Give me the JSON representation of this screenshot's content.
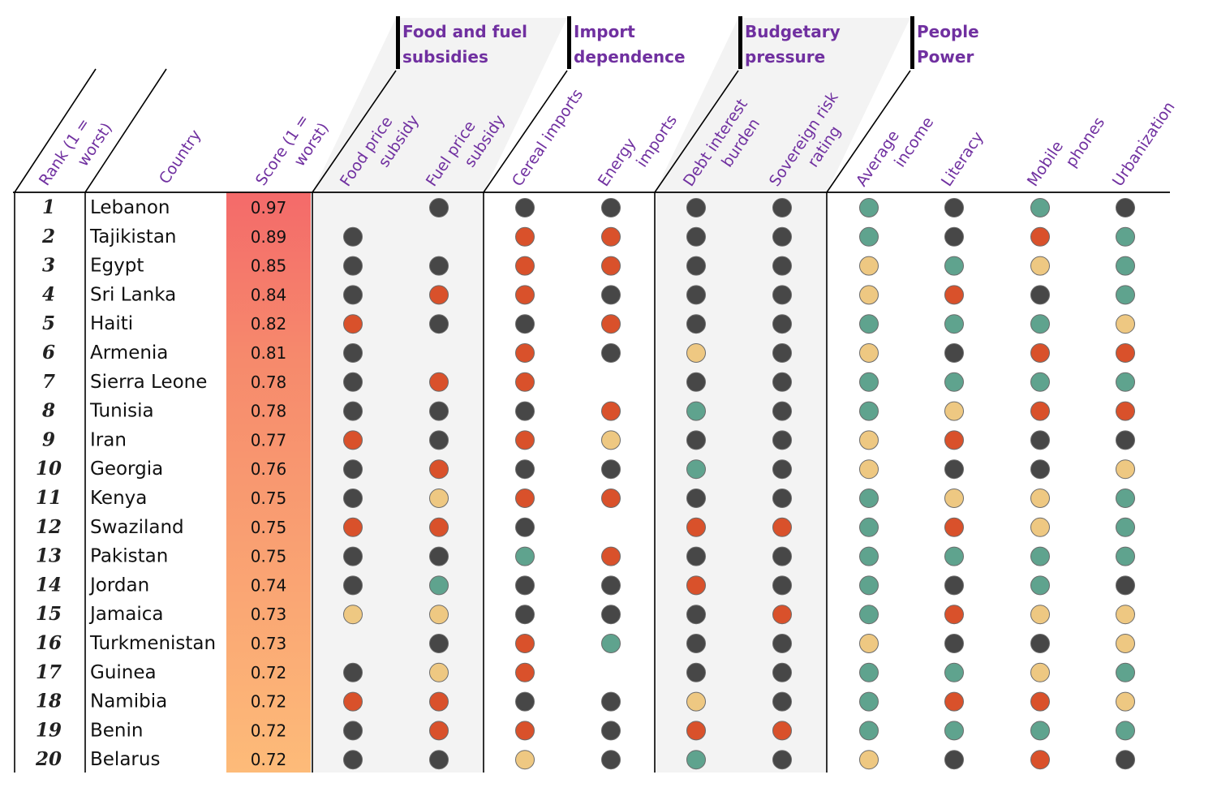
{
  "colors": {
    "none_empty": "",
    "dark": "#474747",
    "red": "#d9512b",
    "yellow": "#eec882",
    "green": "#5fa38e",
    "group_shade": "#f3f3f3",
    "header_text": "#7030a0"
  },
  "groups": [
    {
      "label_lines": [
        "Food and fuel",
        "subsidies"
      ]
    },
    {
      "label_lines": [
        "Import",
        "dependence"
      ]
    },
    {
      "label_lines": [
        "Budgetary",
        "pressure"
      ]
    },
    {
      "label_lines": [
        "People",
        "Power"
      ]
    }
  ],
  "fixed_headers": {
    "rank": [
      "Rank (1 =",
      "worst)"
    ],
    "country": [
      "Country"
    ],
    "score": [
      "Score (1 =",
      "worst)"
    ]
  },
  "indicator_headers": [
    [
      "Food price",
      "subsidy"
    ],
    [
      "Fuel price",
      "subsidy"
    ],
    [
      "Cereal imports"
    ],
    [
      "Energy",
      "imports"
    ],
    [
      "Debt interest",
      "burden"
    ],
    [
      "Sovereign risk",
      "rating"
    ],
    [
      "Average",
      "income"
    ],
    [
      "Literacy"
    ],
    [
      "Mobile",
      "phones"
    ],
    [
      "Urbanization"
    ]
  ],
  "chart_data": {
    "type": "table",
    "legend_codes": {
      "D": "dark",
      "R": "red",
      "Y": "yellow",
      "G": "green",
      "": "no value"
    },
    "rows": [
      {
        "rank": "1",
        "country": "Lebanon",
        "score": "0.97",
        "dots": [
          "",
          "D",
          "D",
          "D",
          "D",
          "D",
          "G",
          "D",
          "G",
          "D"
        ]
      },
      {
        "rank": "2",
        "country": "Tajikistan",
        "score": "0.89",
        "dots": [
          "D",
          "",
          "R",
          "R",
          "D",
          "D",
          "G",
          "D",
          "R",
          "G"
        ]
      },
      {
        "rank": "3",
        "country": "Egypt",
        "score": "0.85",
        "dots": [
          "D",
          "D",
          "R",
          "R",
          "D",
          "D",
          "Y",
          "G",
          "Y",
          "G"
        ]
      },
      {
        "rank": "4",
        "country": "Sri Lanka",
        "score": "0.84",
        "dots": [
          "D",
          "R",
          "R",
          "D",
          "D",
          "D",
          "Y",
          "R",
          "D",
          "G"
        ]
      },
      {
        "rank": "5",
        "country": "Haiti",
        "score": "0.82",
        "dots": [
          "R",
          "D",
          "D",
          "R",
          "D",
          "D",
          "G",
          "G",
          "G",
          "Y"
        ]
      },
      {
        "rank": "6",
        "country": "Armenia",
        "score": "0.81",
        "dots": [
          "D",
          "",
          "R",
          "D",
          "Y",
          "D",
          "Y",
          "D",
          "R",
          "R"
        ]
      },
      {
        "rank": "7",
        "country": "Sierra Leone",
        "score": "0.78",
        "dots": [
          "D",
          "R",
          "R",
          "",
          "D",
          "D",
          "G",
          "G",
          "G",
          "G"
        ]
      },
      {
        "rank": "8",
        "country": "Tunisia",
        "score": "0.78",
        "dots": [
          "D",
          "D",
          "D",
          "R",
          "G",
          "D",
          "G",
          "Y",
          "R",
          "R"
        ]
      },
      {
        "rank": "9",
        "country": "Iran",
        "score": "0.77",
        "dots": [
          "R",
          "D",
          "R",
          "Y",
          "D",
          "D",
          "Y",
          "R",
          "D",
          "D"
        ]
      },
      {
        "rank": "10",
        "country": "Georgia",
        "score": "0.76",
        "dots": [
          "D",
          "R",
          "D",
          "D",
          "G",
          "D",
          "Y",
          "D",
          "D",
          "Y"
        ]
      },
      {
        "rank": "11",
        "country": "Kenya",
        "score": "0.75",
        "dots": [
          "D",
          "Y",
          "R",
          "R",
          "D",
          "D",
          "G",
          "Y",
          "Y",
          "G"
        ]
      },
      {
        "rank": "12",
        "country": "Swaziland",
        "score": "0.75",
        "dots": [
          "R",
          "R",
          "D",
          "",
          "R",
          "R",
          "G",
          "R",
          "Y",
          "G"
        ]
      },
      {
        "rank": "13",
        "country": "Pakistan",
        "score": "0.75",
        "dots": [
          "D",
          "D",
          "G",
          "R",
          "D",
          "D",
          "G",
          "G",
          "G",
          "G"
        ]
      },
      {
        "rank": "14",
        "country": "Jordan",
        "score": "0.74",
        "dots": [
          "D",
          "G",
          "D",
          "D",
          "R",
          "D",
          "G",
          "D",
          "G",
          "D"
        ]
      },
      {
        "rank": "15",
        "country": "Jamaica",
        "score": "0.73",
        "dots": [
          "Y",
          "Y",
          "D",
          "D",
          "D",
          "R",
          "G",
          "R",
          "Y",
          "Y"
        ]
      },
      {
        "rank": "16",
        "country": "Turkmenistan",
        "score": "0.73",
        "dots": [
          "",
          "D",
          "R",
          "G",
          "D",
          "D",
          "Y",
          "D",
          "D",
          "Y"
        ]
      },
      {
        "rank": "17",
        "country": "Guinea",
        "score": "0.72",
        "dots": [
          "D",
          "Y",
          "R",
          "",
          "D",
          "D",
          "G",
          "G",
          "Y",
          "G"
        ]
      },
      {
        "rank": "18",
        "country": "Namibia",
        "score": "0.72",
        "dots": [
          "R",
          "R",
          "D",
          "D",
          "Y",
          "D",
          "G",
          "R",
          "R",
          "Y"
        ]
      },
      {
        "rank": "19",
        "country": "Benin",
        "score": "0.72",
        "dots": [
          "D",
          "R",
          "R",
          "D",
          "R",
          "R",
          "G",
          "G",
          "G",
          "G"
        ]
      },
      {
        "rank": "20",
        "country": "Belarus",
        "score": "0.72",
        "dots": [
          "D",
          "D",
          "Y",
          "D",
          "G",
          "D",
          "Y",
          "D",
          "R",
          "D"
        ]
      }
    ]
  }
}
